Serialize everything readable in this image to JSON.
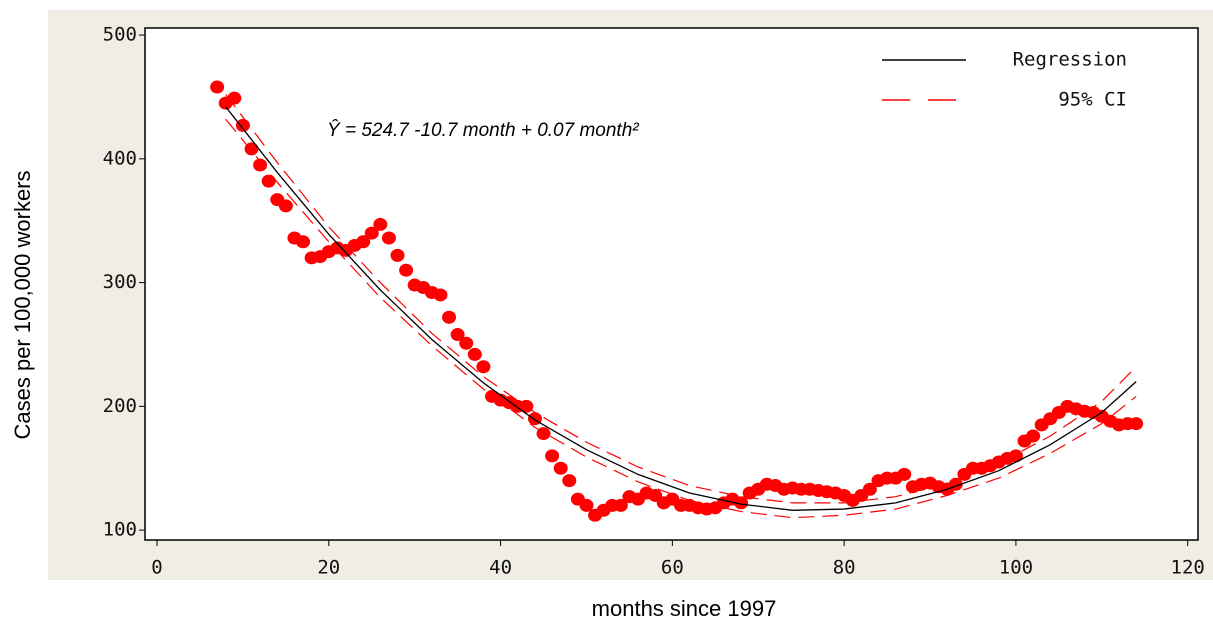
{
  "chart_data": {
    "type": "scatter",
    "annotation": "Ŷ = 524.7 -10.7 month + 0.07 month²",
    "x_label": "months since 1997",
    "y_label": "Cases per 100,000 workers",
    "color": "#ff0000",
    "x": [
      7,
      8,
      9,
      10,
      11,
      12,
      13,
      14,
      15,
      16,
      17,
      18,
      19,
      20,
      21,
      22,
      23,
      24,
      25,
      26,
      27,
      28,
      29,
      30,
      31,
      32,
      33,
      34,
      35,
      36,
      37,
      38,
      39,
      40,
      41,
      42,
      43,
      44,
      45,
      46,
      47,
      48,
      49,
      50,
      51,
      52,
      53,
      54,
      55,
      56,
      57,
      58,
      59,
      60,
      61,
      62,
      63,
      64,
      65,
      66,
      67,
      68,
      69,
      70,
      71,
      72,
      73,
      74,
      75,
      76,
      77,
      78,
      79,
      80,
      81,
      82,
      83,
      84,
      85,
      86,
      87,
      88,
      89,
      90,
      91,
      92,
      93,
      94,
      95,
      96,
      97,
      98,
      99,
      100,
      101,
      102,
      103,
      104,
      105,
      106,
      107,
      108,
      109,
      110,
      111,
      112,
      113,
      114
    ],
    "values": [
      458,
      445,
      449,
      427,
      408,
      395,
      382,
      367,
      362,
      336,
      333,
      320,
      321,
      325,
      328,
      326,
      330,
      333,
      340,
      347,
      336,
      322,
      310,
      298,
      296,
      292,
      290,
      272,
      258,
      251,
      242,
      232,
      208,
      205,
      203,
      200,
      200,
      190,
      178,
      160,
      150,
      140,
      125,
      120,
      112,
      116,
      120,
      120,
      127,
      125,
      130,
      128,
      122,
      125,
      120,
      120,
      118,
      117,
      118,
      122,
      125,
      122,
      130,
      133,
      137,
      136,
      133,
      134,
      133,
      133,
      132,
      131,
      130,
      128,
      124,
      128,
      133,
      140,
      142,
      142,
      145,
      135,
      137,
      138,
      135,
      133,
      137,
      145,
      150,
      150,
      152,
      155,
      158,
      160,
      172,
      176,
      185,
      190,
      195,
      200,
      198,
      196,
      195,
      192,
      188,
      185,
      186,
      186
    ],
    "series": [
      {
        "name": "Regression",
        "color": "#000000",
        "x": [
          8,
          14,
          20,
          26,
          32,
          38,
          44,
          50,
          56,
          62,
          68,
          74,
          80,
          86,
          92,
          98,
          104,
          110,
          114
        ],
        "values": [
          442,
          389,
          339,
          294,
          254,
          219,
          189,
          165,
          145,
          130,
          121,
          116,
          117,
          122,
          133,
          148,
          169,
          195,
          220
        ]
      },
      {
        "name": "95% CI",
        "color": "#ff0000",
        "x": [
          8,
          14,
          20,
          26,
          32,
          38,
          44,
          50,
          56,
          62,
          68,
          74,
          80,
          86,
          92,
          98,
          104,
          110,
          114
        ],
        "upper": [
          452,
          397,
          345,
          300,
          259,
          224,
          195,
          171,
          151,
          136,
          127,
          122,
          122,
          127,
          138,
          154,
          176,
          204,
          232
        ],
        "lower": [
          432,
          381,
          333,
          288,
          249,
          214,
          183,
          159,
          139,
          124,
          115,
          110,
          112,
          117,
          128,
          142,
          162,
          186,
          208
        ]
      }
    ],
    "xlim": [
      -1.4,
      121.2
    ],
    "ylim": [
      92,
      505.7
    ],
    "xticks": [
      0,
      20,
      40,
      60,
      80,
      100,
      120
    ],
    "yticks": [
      100,
      200,
      300,
      400,
      500
    ],
    "legend": "top-right"
  }
}
